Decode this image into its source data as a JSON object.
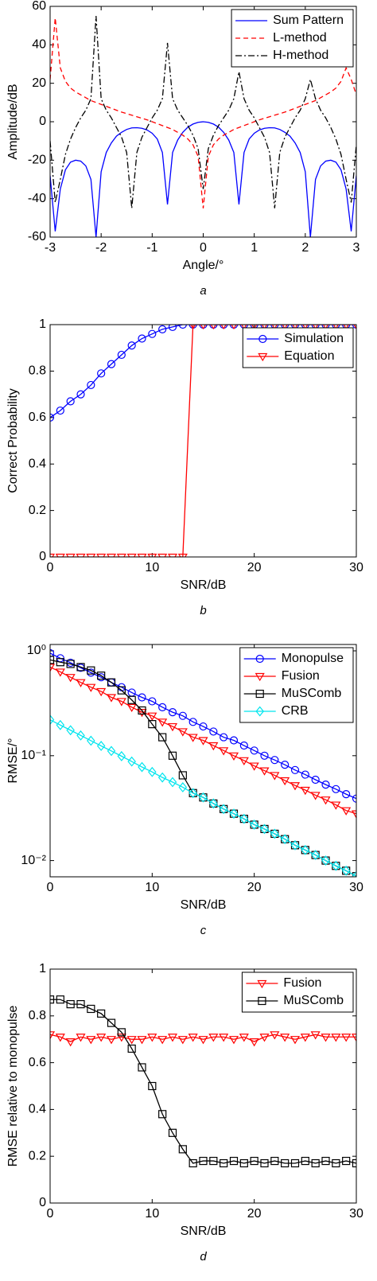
{
  "chart_data": [
    {
      "type": "line",
      "xlabel": "Angle/°",
      "ylabel": "Amplitude/dB",
      "caption": "a",
      "x": [
        -3,
        -2.9,
        -2.8,
        -2.7,
        -2.6,
        -2.5,
        -2.4,
        -2.3,
        -2.2,
        -2.1,
        -2,
        -1.9,
        -1.8,
        -1.7,
        -1.6,
        -1.5,
        -1.4,
        -1.3,
        -1.2,
        -1.1,
        -1,
        -0.9,
        -0.8,
        -0.7,
        -0.6,
        -0.5,
        -0.4,
        -0.3,
        -0.2,
        -0.1,
        0,
        0.1,
        0.2,
        0.3,
        0.4,
        0.5,
        0.6,
        0.7,
        0.8,
        0.9,
        1,
        1.1,
        1.2,
        1.3,
        1.4,
        1.5,
        1.6,
        1.7,
        1.8,
        1.9,
        2,
        2.1,
        2.2,
        2.3,
        2.4,
        2.5,
        2.6,
        2.7,
        2.8,
        2.9,
        3
      ],
      "series": [
        {
          "name": "Sum Pattern",
          "color": "#0000ff",
          "line_style": "solid",
          "marker": "none",
          "values": [
            -28,
            -57,
            -35,
            -25,
            -21,
            -20,
            -20.5,
            -23,
            -30,
            -60,
            -26,
            -16,
            -11,
            -7.5,
            -5.5,
            -4,
            -3.2,
            -3.1,
            -3.4,
            -4.3,
            -6,
            -9,
            -16,
            -43,
            -16,
            -9.5,
            -5.5,
            -2.8,
            -1.2,
            -0.3,
            0,
            -0.3,
            -1.2,
            -2.8,
            -5.5,
            -9.5,
            -16,
            -43,
            -16,
            -9,
            -6,
            -4.3,
            -3.4,
            -3.1,
            -3.2,
            -4,
            -5.5,
            -7.5,
            -11,
            -16,
            -26,
            -60,
            -30,
            -23,
            -20.5,
            -20,
            -21,
            -25,
            -35,
            -57,
            -28
          ]
        },
        {
          "name": "L-method",
          "color": "#ff0000",
          "line_style": "dashed",
          "marker": "none",
          "values": [
            22,
            54,
            28,
            21,
            17.5,
            15.5,
            14,
            12.5,
            11,
            10,
            9,
            8,
            7,
            6,
            5,
            4.2,
            3.4,
            2.6,
            1.8,
            1,
            0,
            -1,
            -2,
            -3,
            -4,
            -5.5,
            -7,
            -9,
            -12,
            -18,
            -45,
            -18,
            -12,
            -9,
            -7,
            -5.5,
            -4,
            -3,
            -2,
            -1,
            0,
            1,
            1.8,
            2.6,
            3.4,
            4.2,
            5,
            6,
            7,
            8,
            9,
            10,
            11,
            12.5,
            14,
            15.5,
            17.5,
            21,
            28,
            22,
            14
          ]
        },
        {
          "name": "H-method",
          "color": "#000000",
          "line_style": "dashdot",
          "marker": "none",
          "values": [
            -10,
            -42,
            -30,
            -17,
            -9,
            -3,
            2,
            6,
            12,
            55,
            12,
            6,
            2,
            -3,
            -8,
            -16,
            -45,
            -16,
            -8,
            -3,
            2,
            6,
            12,
            41,
            12,
            6,
            2,
            -2,
            -7,
            -14,
            -35,
            -14,
            -7,
            -2,
            2,
            6,
            12,
            26,
            12,
            6,
            2,
            -3,
            -8,
            -16,
            -45,
            -16,
            -8,
            -3,
            2,
            6,
            12,
            22,
            12,
            6,
            2,
            -3,
            -9,
            -17,
            -30,
            -42,
            -12
          ]
        }
      ],
      "xlim": [
        -3,
        3
      ],
      "xticks": [
        -3,
        -2,
        -1,
        0,
        1,
        2,
        3
      ],
      "ylim": [
        -60,
        60
      ],
      "yticks": [
        -60,
        -40,
        -20,
        0,
        20,
        40,
        60
      ],
      "yscale": "linear",
      "grid": false,
      "legend": "upper right"
    },
    {
      "type": "line",
      "xlabel": "SNR/dB",
      "ylabel": "Correct Probability",
      "caption": "b",
      "x": [
        0,
        1,
        2,
        3,
        4,
        5,
        6,
        7,
        8,
        9,
        10,
        11,
        12,
        13,
        14,
        15,
        16,
        17,
        18,
        19,
        20,
        21,
        22,
        23,
        24,
        25,
        26,
        27,
        28,
        29,
        30
      ],
      "series": [
        {
          "name": "Simulation",
          "color": "#0000ff",
          "line_style": "solid",
          "marker": "circle",
          "values": [
            0.6,
            0.63,
            0.67,
            0.7,
            0.74,
            0.79,
            0.83,
            0.87,
            0.91,
            0.94,
            0.96,
            0.98,
            0.99,
            1,
            1,
            1,
            1,
            1,
            1,
            1,
            1,
            1,
            1,
            1,
            1,
            1,
            1,
            1,
            1,
            1,
            1
          ]
        },
        {
          "name": "Equation",
          "color": "#ff0000",
          "line_style": "solid",
          "marker": "triangle-down",
          "values": [
            0,
            0,
            0,
            0,
            0,
            0,
            0,
            0,
            0,
            0,
            0,
            0,
            0,
            0,
            1,
            1,
            1,
            1,
            1,
            1,
            1,
            1,
            1,
            1,
            1,
            1,
            1,
            1,
            1,
            1,
            1
          ]
        }
      ],
      "xlim": [
        0,
        30
      ],
      "xticks": [
        0,
        10,
        20,
        30
      ],
      "ylim": [
        0,
        1
      ],
      "yticks": [
        0,
        0.2,
        0.4,
        0.6,
        0.8,
        1
      ],
      "yscale": "linear",
      "grid": false,
      "legend": "upper right"
    },
    {
      "type": "line",
      "xlabel": "SNR/dB",
      "ylabel": "RMSE/°",
      "caption": "c",
      "x": [
        0,
        1,
        2,
        3,
        4,
        5,
        6,
        7,
        8,
        9,
        10,
        11,
        12,
        13,
        14,
        15,
        16,
        17,
        18,
        19,
        20,
        21,
        22,
        23,
        24,
        25,
        26,
        27,
        28,
        29,
        30
      ],
      "series": [
        {
          "name": "Monopulse",
          "color": "#0000ff",
          "line_style": "solid",
          "marker": "circle",
          "values": [
            0.95,
            0.85,
            0.77,
            0.69,
            0.62,
            0.56,
            0.5,
            0.45,
            0.4,
            0.36,
            0.33,
            0.29,
            0.26,
            0.24,
            0.21,
            0.19,
            0.17,
            0.15,
            0.14,
            0.125,
            0.112,
            0.1,
            0.091,
            0.082,
            0.073,
            0.066,
            0.059,
            0.053,
            0.048,
            0.043,
            0.039
          ]
        },
        {
          "name": "Fusion",
          "color": "#ff0000",
          "line_style": "solid",
          "marker": "triangle-down",
          "values": [
            0.7,
            0.63,
            0.56,
            0.5,
            0.45,
            0.41,
            0.36,
            0.33,
            0.29,
            0.26,
            0.24,
            0.21,
            0.19,
            0.17,
            0.15,
            0.14,
            0.125,
            0.112,
            0.1,
            0.09,
            0.08,
            0.072,
            0.065,
            0.058,
            0.052,
            0.047,
            0.042,
            0.038,
            0.034,
            0.03,
            0.028
          ]
        },
        {
          "name": "MuSComb",
          "color": "#000000",
          "line_style": "solid",
          "marker": "square",
          "values": [
            0.82,
            0.78,
            0.75,
            0.7,
            0.65,
            0.58,
            0.5,
            0.42,
            0.34,
            0.27,
            0.2,
            0.15,
            0.1,
            0.065,
            0.044,
            0.04,
            0.035,
            0.031,
            0.028,
            0.025,
            0.022,
            0.02,
            0.018,
            0.016,
            0.014,
            0.0126,
            0.0113,
            0.01,
            0.0089,
            0.008,
            0.0071
          ]
        },
        {
          "name": "CRB",
          "color": "#00e5ee",
          "line_style": "solid",
          "marker": "diamond",
          "values": [
            0.22,
            0.196,
            0.175,
            0.156,
            0.139,
            0.124,
            0.111,
            0.099,
            0.088,
            0.078,
            0.07,
            0.062,
            0.056,
            0.05,
            0.044,
            0.04,
            0.035,
            0.031,
            0.028,
            0.025,
            0.022,
            0.02,
            0.018,
            0.016,
            0.014,
            0.0126,
            0.0113,
            0.01,
            0.0089,
            0.008,
            0.0071
          ]
        }
      ],
      "xlim": [
        0,
        30
      ],
      "xticks": [
        0,
        10,
        20,
        30
      ],
      "ylim": [
        0.007,
        1.15
      ],
      "yticks": [
        {
          "value": 0.01,
          "label": "10⁻²"
        },
        {
          "value": 0.1,
          "label": "10⁻¹"
        },
        {
          "value": 1,
          "label": "10⁰"
        }
      ],
      "yscale": "log",
      "grid": false,
      "legend": "upper right"
    },
    {
      "type": "line",
      "xlabel": "SNR/dB",
      "ylabel": "RMSE relative to monopulse",
      "caption": "d",
      "x": [
        0,
        1,
        2,
        3,
        4,
        5,
        6,
        7,
        8,
        9,
        10,
        11,
        12,
        13,
        14,
        15,
        16,
        17,
        18,
        19,
        20,
        21,
        22,
        23,
        24,
        25,
        26,
        27,
        28,
        29,
        30
      ],
      "series": [
        {
          "name": "Fusion",
          "color": "#ff0000",
          "line_style": "solid",
          "marker": "triangle-down",
          "values": [
            0.72,
            0.71,
            0.69,
            0.71,
            0.7,
            0.71,
            0.7,
            0.71,
            0.7,
            0.7,
            0.71,
            0.7,
            0.71,
            0.7,
            0.71,
            0.7,
            0.71,
            0.71,
            0.7,
            0.71,
            0.69,
            0.71,
            0.72,
            0.71,
            0.7,
            0.71,
            0.72,
            0.71,
            0.71,
            0.71,
            0.71
          ]
        },
        {
          "name": "MuSComb",
          "color": "#000000",
          "line_style": "solid",
          "marker": "square",
          "values": [
            0.87,
            0.87,
            0.85,
            0.85,
            0.83,
            0.81,
            0.77,
            0.73,
            0.66,
            0.58,
            0.5,
            0.38,
            0.3,
            0.23,
            0.17,
            0.18,
            0.18,
            0.17,
            0.18,
            0.17,
            0.18,
            0.17,
            0.18,
            0.17,
            0.17,
            0.18,
            0.17,
            0.18,
            0.17,
            0.18,
            0.17
          ]
        }
      ],
      "xlim": [
        0,
        30
      ],
      "xticks": [
        0,
        10,
        20,
        30
      ],
      "ylim": [
        0,
        1
      ],
      "yticks": [
        0,
        0.2,
        0.4,
        0.6,
        0.8,
        1
      ],
      "yscale": "linear",
      "grid": false,
      "legend": "upper right"
    }
  ]
}
